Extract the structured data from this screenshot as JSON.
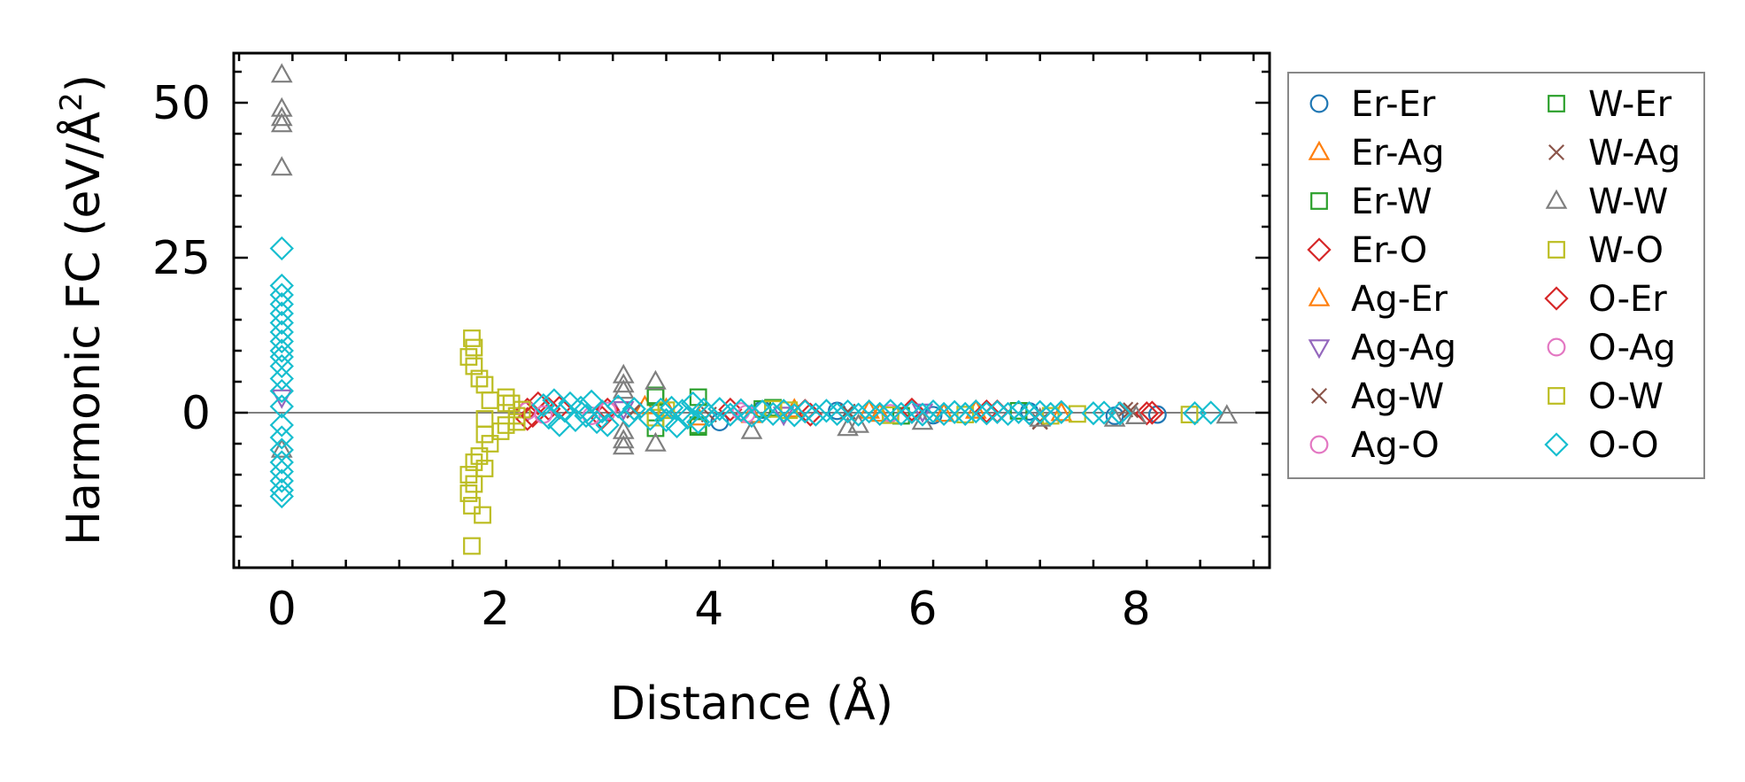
{
  "chart_data": {
    "type": "scatter",
    "title": "",
    "xlabel": "Distance (Å)",
    "ylabel": "Harmonic FC (eV/Å²)",
    "ylabel_main": "Harmonic FC (eV/Å",
    "ylabel_sup": "2",
    "ylabel_close": ")",
    "xlim": [
      -0.45,
      9.25
    ],
    "ylim": [
      -25,
      58
    ],
    "xticks": [
      0,
      2,
      4,
      6,
      8
    ],
    "xtick_labels": [
      "0",
      "2",
      "4",
      "6",
      "8"
    ],
    "yticks": [
      0,
      25,
      50
    ],
    "ytick_labels": [
      "0",
      "25",
      "50"
    ],
    "zero_line": 0,
    "legend_position": "outside-right",
    "series": [
      {
        "name": "Er-Er",
        "marker": "circle",
        "color": "#1f77b4",
        "points": [
          [
            4.1,
            -1.5
          ],
          [
            4.5,
            0.5
          ],
          [
            5.2,
            0.3
          ],
          [
            6.1,
            -0.4
          ],
          [
            7.0,
            0.2
          ],
          [
            7.8,
            -0.5
          ],
          [
            8.2,
            -0.3
          ]
        ]
      },
      {
        "name": "Er-Ag",
        "marker": "triangle-up",
        "color": "#ff7f0e",
        "points": [
          [
            3.4,
            1.0
          ],
          [
            3.9,
            -0.8
          ],
          [
            4.8,
            0.5
          ],
          [
            5.6,
            -0.2
          ],
          [
            6.5,
            0.3
          ],
          [
            7.3,
            -0.1
          ]
        ]
      },
      {
        "name": "Er-W",
        "marker": "square",
        "color": "#2ca02c",
        "points": [
          [
            3.5,
            2.8
          ],
          [
            3.5,
            -2.5
          ],
          [
            3.9,
            2.5
          ],
          [
            3.9,
            -2.0
          ],
          [
            4.6,
            0.8
          ],
          [
            5.8,
            -0.5
          ],
          [
            6.9,
            0.3
          ]
        ]
      },
      {
        "name": "Er-O",
        "marker": "diamond",
        "color": "#d62728",
        "points": [
          [
            2.3,
            0.5
          ],
          [
            2.3,
            -1.0
          ],
          [
            2.4,
            1.5
          ],
          [
            2.6,
            0.8
          ],
          [
            3.0,
            -0.8
          ],
          [
            4.2,
            0.5
          ],
          [
            4.9,
            0.3
          ],
          [
            5.9,
            0.5
          ],
          [
            6.6,
            0.2
          ],
          [
            8.1,
            -0.1
          ]
        ]
      },
      {
        "name": "Ag-Er",
        "marker": "triangle-up",
        "color": "#ff7f0e",
        "points": [
          [
            3.6,
            0.6
          ],
          [
            4.4,
            -0.4
          ],
          [
            5.5,
            0.3
          ],
          [
            6.2,
            -0.2
          ]
        ]
      },
      {
        "name": "Ag-Ag",
        "marker": "triangle-down",
        "color": "#9467bd",
        "points": [
          [
            0.0,
            2.5
          ],
          [
            3.2,
            0.6
          ],
          [
            4.7,
            -0.3
          ],
          [
            6.0,
            0.2
          ]
        ]
      },
      {
        "name": "Ag-W",
        "marker": "x",
        "color": "#8c564b",
        "points": [
          [
            3.3,
            0.4
          ],
          [
            4.0,
            -0.3
          ],
          [
            5.3,
            0.2
          ],
          [
            7.1,
            -1.5
          ],
          [
            7.9,
            0.5
          ]
        ]
      },
      {
        "name": "Ag-O",
        "marker": "circle",
        "color": "#e377c2",
        "points": [
          [
            2.3,
            0.3
          ],
          [
            2.9,
            -0.5
          ],
          [
            4.3,
            0.2
          ],
          [
            5.7,
            -0.1
          ]
        ]
      },
      {
        "name": "W-Er",
        "marker": "square",
        "color": "#2ca02c",
        "points": [
          [
            3.5,
            2.5
          ],
          [
            3.9,
            -2.3
          ],
          [
            4.5,
            0.6
          ]
        ]
      },
      {
        "name": "W-Ag",
        "marker": "x",
        "color": "#8c564b",
        "points": [
          [
            3.3,
            0.3
          ],
          [
            5.3,
            -0.2
          ],
          [
            7.1,
            -1.4
          ],
          [
            7.95,
            0.4
          ]
        ]
      },
      {
        "name": "W-W",
        "marker": "triangle-up",
        "color": "#7f7f7f",
        "points": [
          [
            0.0,
            54.5
          ],
          [
            0.0,
            49.0
          ],
          [
            0.0,
            47.5
          ],
          [
            0.0,
            46.5
          ],
          [
            0.0,
            39.5
          ],
          [
            0.0,
            -6.0
          ],
          [
            3.2,
            6.0
          ],
          [
            3.2,
            4.5
          ],
          [
            3.2,
            3.5
          ],
          [
            3.2,
            -3.0
          ],
          [
            3.2,
            -4.5
          ],
          [
            3.2,
            -5.5
          ],
          [
            3.5,
            5.0
          ],
          [
            3.5,
            -5.0
          ],
          [
            4.4,
            -3.0
          ],
          [
            5.3,
            -2.5
          ],
          [
            5.4,
            -2.0
          ],
          [
            6.0,
            -1.5
          ],
          [
            7.1,
            -1.0
          ],
          [
            7.8,
            -1.0
          ],
          [
            8.0,
            -0.6
          ],
          [
            8.85,
            -0.5
          ]
        ]
      },
      {
        "name": "W-O",
        "marker": "square",
        "color": "#bcbd22",
        "points": [
          [
            1.78,
            12.0
          ],
          [
            1.8,
            10.5
          ],
          [
            1.75,
            9.0
          ],
          [
            1.8,
            7.5
          ],
          [
            1.85,
            5.5
          ],
          [
            1.9,
            4.5
          ],
          [
            1.95,
            2.0
          ],
          [
            1.9,
            -1.0
          ],
          [
            1.9,
            -3.5
          ],
          [
            1.95,
            -5.0
          ],
          [
            1.85,
            -7.0
          ],
          [
            1.8,
            -8.0
          ],
          [
            1.9,
            -9.0
          ],
          [
            1.75,
            -10.0
          ],
          [
            1.8,
            -11.5
          ],
          [
            1.75,
            -13.0
          ],
          [
            1.78,
            -15.0
          ],
          [
            1.88,
            -16.5
          ],
          [
            1.78,
            -21.5
          ],
          [
            2.05,
            -3.0
          ],
          [
            2.1,
            2.5
          ],
          [
            2.15,
            1.5
          ],
          [
            2.2,
            -1.5
          ],
          [
            2.1,
            -2.0
          ],
          [
            2.25,
            0.5
          ],
          [
            3.5,
            -0.8
          ],
          [
            4.75,
            0.4
          ],
          [
            5.7,
            -0.4
          ],
          [
            7.2,
            -0.5
          ],
          [
            7.45,
            -0.2
          ],
          [
            8.5,
            -0.3
          ]
        ]
      },
      {
        "name": "O-Er",
        "marker": "diamond",
        "color": "#d62728",
        "points": [
          [
            2.35,
            -0.5
          ],
          [
            2.5,
            0.6
          ],
          [
            3.05,
            0.5
          ],
          [
            4.95,
            -0.3
          ],
          [
            6.7,
            0.2
          ],
          [
            8.15,
            0.0
          ]
        ]
      },
      {
        "name": "O-Ag",
        "marker": "circle",
        "color": "#e377c2",
        "points": [
          [
            2.45,
            -0.3
          ],
          [
            3.05,
            0.3
          ],
          [
            4.35,
            -0.2
          ]
        ]
      },
      {
        "name": "O-W",
        "marker": "square",
        "color": "#bcbd22",
        "points": [
          [
            2.1,
            1.5
          ],
          [
            2.2,
            -0.5
          ],
          [
            3.6,
            0.4
          ],
          [
            4.6,
            0.6
          ],
          [
            6.4,
            -0.3
          ]
        ]
      },
      {
        "name": "O-O",
        "marker": "diamond",
        "color": "#17becf",
        "points": [
          [
            0.0,
            26.5
          ],
          [
            0.0,
            20.5
          ],
          [
            0.0,
            19.0
          ],
          [
            0.0,
            17.5
          ],
          [
            0.0,
            16.0
          ],
          [
            0.0,
            14.5
          ],
          [
            0.0,
            13.0
          ],
          [
            0.0,
            11.5
          ],
          [
            0.0,
            10.0
          ],
          [
            0.0,
            9.0
          ],
          [
            0.0,
            7.5
          ],
          [
            0.0,
            5.5
          ],
          [
            0.0,
            3.5
          ],
          [
            0.0,
            1.0
          ],
          [
            0.0,
            -2.0
          ],
          [
            0.0,
            -4.0
          ],
          [
            0.0,
            -6.0
          ],
          [
            0.0,
            -8.0
          ],
          [
            0.0,
            -9.5
          ],
          [
            0.0,
            -11.0
          ],
          [
            0.0,
            -12.5
          ],
          [
            0.0,
            -13.5
          ],
          [
            2.45,
            1.2
          ],
          [
            2.5,
            -0.8
          ],
          [
            2.55,
            2.0
          ],
          [
            2.6,
            -2.0
          ],
          [
            2.65,
            0.3
          ],
          [
            2.7,
            1.5
          ],
          [
            2.75,
            -1.2
          ],
          [
            2.8,
            0.8
          ],
          [
            2.85,
            -0.5
          ],
          [
            2.9,
            1.8
          ],
          [
            2.95,
            -1.5
          ],
          [
            3.0,
            0.2
          ],
          [
            3.05,
            -2.0
          ],
          [
            3.15,
            1.0
          ],
          [
            3.25,
            -0.5
          ],
          [
            3.3,
            0.6
          ],
          [
            3.45,
            -1.0
          ],
          [
            3.55,
            0.5
          ],
          [
            3.6,
            -1.2
          ],
          [
            3.65,
            0.8
          ],
          [
            3.7,
            -2.2
          ],
          [
            3.75,
            0.3
          ],
          [
            3.8,
            -0.8
          ],
          [
            3.85,
            1.5
          ],
          [
            3.9,
            -1.5
          ],
          [
            3.95,
            0.5
          ],
          [
            4.0,
            -0.4
          ],
          [
            4.1,
            0.6
          ],
          [
            4.2,
            -0.3
          ],
          [
            4.3,
            0.4
          ],
          [
            4.4,
            -0.5
          ],
          [
            4.5,
            0.2
          ],
          [
            4.6,
            -0.2
          ],
          [
            4.7,
            0.3
          ],
          [
            4.8,
            -0.4
          ],
          [
            4.9,
            0.2
          ],
          [
            5.0,
            -0.3
          ],
          [
            5.1,
            0.3
          ],
          [
            5.2,
            -0.2
          ],
          [
            5.3,
            0.2
          ],
          [
            5.4,
            -0.3
          ],
          [
            5.5,
            0.2
          ],
          [
            5.6,
            -0.2
          ],
          [
            5.7,
            0.3
          ],
          [
            5.8,
            -0.2
          ],
          [
            5.9,
            0.1
          ],
          [
            6.0,
            -0.3
          ],
          [
            6.1,
            0.2
          ],
          [
            6.2,
            -0.2
          ],
          [
            6.3,
            0.1
          ],
          [
            6.4,
            -0.2
          ],
          [
            6.5,
            0.2
          ],
          [
            6.6,
            -0.1
          ],
          [
            6.7,
            0.1
          ],
          [
            6.8,
            -0.2
          ],
          [
            6.9,
            0.1
          ],
          [
            7.0,
            -0.1
          ],
          [
            7.1,
            0.1
          ],
          [
            7.2,
            -0.2
          ],
          [
            7.3,
            0.1
          ],
          [
            7.6,
            -0.1
          ],
          [
            7.7,
            0.0
          ],
          [
            7.85,
            -0.1
          ],
          [
            8.55,
            -0.1
          ],
          [
            8.7,
            0.0
          ]
        ]
      }
    ]
  }
}
